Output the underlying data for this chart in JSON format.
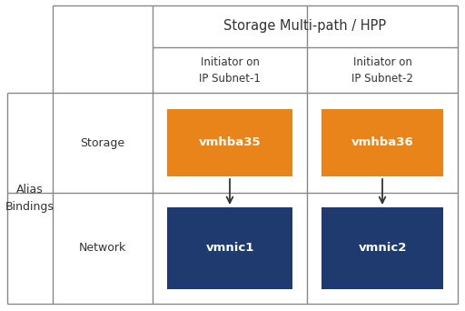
{
  "title": "Storage Multi-path / HPP",
  "col1_header": "Initiator on\nIP Subnet-1",
  "col2_header": "Initiator on\nIP Subnet-2",
  "row1_label": "Storage",
  "row2_label": "Network",
  "outer_label": "Alias\nBindings",
  "box1_label": "vmhba35",
  "box2_label": "vmhba36",
  "box3_label": "vmnic1",
  "box4_label": "vmnic2",
  "orange_color": "#E8841A",
  "blue_color": "#1E3A6E",
  "white": "#FFFFFF",
  "grid_color": "#888888",
  "text_color_dark": "#333333",
  "text_color_light": "#FFFFFF",
  "background": "#FFFFFF"
}
